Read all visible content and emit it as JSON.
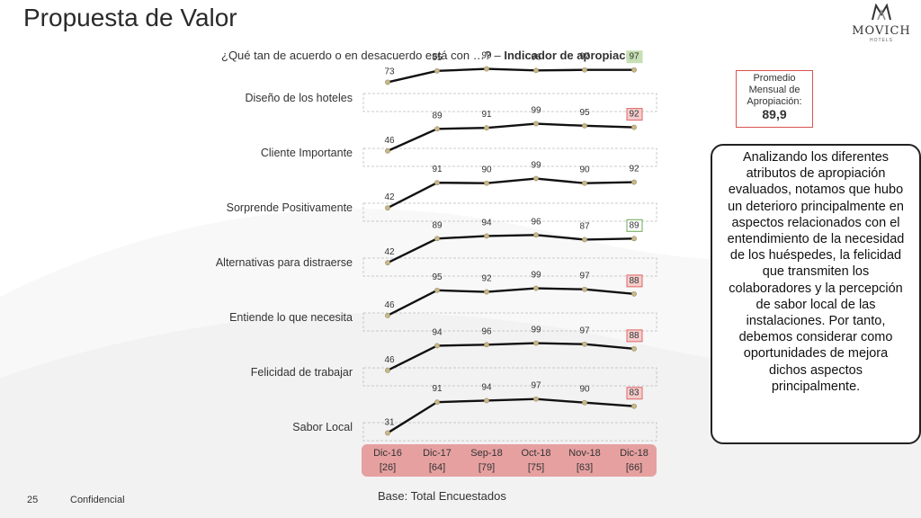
{
  "header": {
    "title": "Propuesta de Valor",
    "subtitle_prefix": "¿Qué tan de acuerdo o en desacuerdo está con …? – ",
    "subtitle_bold": "Indicador de apropiación",
    "logo_text": "MOVICH",
    "logo_subtext": "HOTELS"
  },
  "summary": {
    "label": "Promedio Mensual de Apropiación:",
    "value": "89,9"
  },
  "callout_text": "Analizando los diferentes atributos de apropiación evaluados, notamos que hubo un deterioro principalmente en aspectos relacionados con el entendimiento de la necesidad de los huéspedes, la felicidad que transmiten los colaboradores y la percepción de sabor local de las instalaciones. Por tanto, debemos considerar como oportunidades de mejora dichos aspectos principalmente.",
  "chart_data": {
    "type": "line",
    "categories": [
      "Dic-16",
      "Dic-17",
      "Sep-18",
      "Oct-18",
      "Nov-18",
      "Dic-18"
    ],
    "bases": [
      "[26]",
      "[64]",
      "[79]",
      "[75]",
      "[63]",
      "[66]"
    ],
    "series": [
      {
        "name": "Diseño de los hoteles",
        "values": [
          73,
          95,
          99,
          96,
          97,
          97
        ],
        "last_highlight": "#c6e0b4",
        "last_border": "#c6e0b4"
      },
      {
        "name": "Cliente Importante",
        "values": [
          46,
          89,
          91,
          99,
          95,
          92
        ],
        "last_highlight": "#f4cccc",
        "last_border": "#e06666"
      },
      {
        "name": "Sorprende Positivamente",
        "values": [
          42,
          91,
          90,
          99,
          90,
          92
        ],
        "last_highlight": "",
        "last_border": ""
      },
      {
        "name": "Alternativas para distraerse",
        "values": [
          42,
          89,
          94,
          96,
          87,
          89
        ],
        "last_highlight": "#ffffff",
        "last_border": "#6aa84f"
      },
      {
        "name": "Entiende lo que necesita",
        "values": [
          46,
          95,
          92,
          99,
          97,
          88
        ],
        "last_highlight": "#f4cccc",
        "last_border": "#e06666"
      },
      {
        "name": "Felicidad de trabajar",
        "values": [
          46,
          94,
          96,
          99,
          97,
          88
        ],
        "last_highlight": "#f4cccc",
        "last_border": "#e06666"
      },
      {
        "name": "Sabor Local",
        "values": [
          31,
          91,
          94,
          97,
          90,
          83
        ],
        "last_highlight": "#f4cccc",
        "last_border": "#e06666"
      }
    ],
    "ylim": [
      0,
      100
    ],
    "line_color": "#111111",
    "marker_color": "#c8b88a",
    "date_bar_color": "#e6a0a0"
  },
  "footer": {
    "base": "Base: Total Encuestados",
    "page": "25",
    "confidential": "Confidencial"
  }
}
